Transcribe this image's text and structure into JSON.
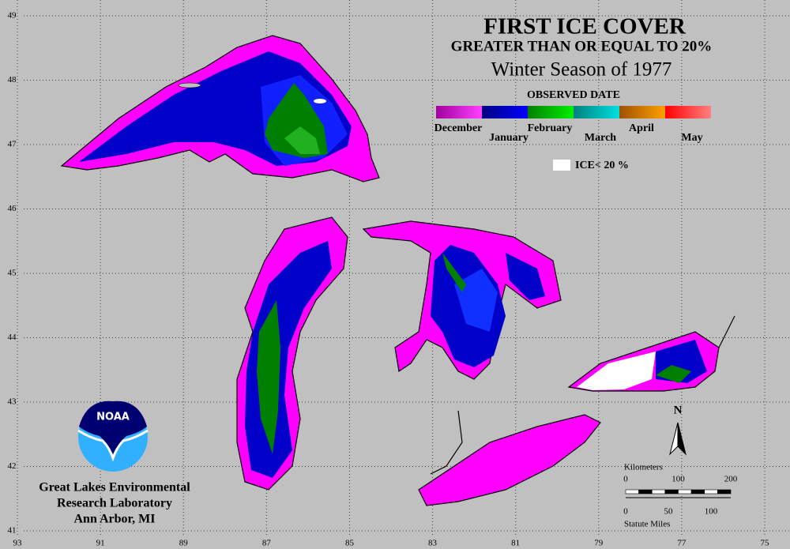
{
  "header": {
    "title": "FIRST ICE COVER",
    "subtitle": "GREATER THAN OR EQUAL TO 20%",
    "season": "Winter Season of 1977"
  },
  "legend": {
    "title": "OBSERVED DATE",
    "months": [
      {
        "label": "December",
        "colors": [
          "#a000a0",
          "#ff40ff"
        ]
      },
      {
        "label": "January",
        "colors": [
          "#000080",
          "#0000ff"
        ]
      },
      {
        "label": "February",
        "colors": [
          "#008000",
          "#00f000"
        ]
      },
      {
        "label": "March",
        "colors": [
          "#008080",
          "#00e0e0"
        ]
      },
      {
        "label": "April",
        "colors": [
          "#a05000",
          "#ffa000"
        ]
      },
      {
        "label": "May",
        "colors": [
          "#ff0000",
          "#ff8080"
        ]
      }
    ],
    "ice_label": "ICE< 20 %"
  },
  "grid": {
    "latitudes": [
      49,
      48,
      47,
      46,
      45,
      44,
      43,
      42,
      41
    ],
    "longitudes": [
      93,
      91,
      89,
      87,
      85,
      83,
      81,
      79,
      77,
      75
    ]
  },
  "scale": {
    "km_label": "Kilometers",
    "km_ticks": [
      0,
      100,
      200
    ],
    "mi_label": "Statute Miles",
    "mi_ticks": [
      0,
      50,
      100
    ]
  },
  "logo": "NOAA",
  "organization": [
    "Great Lakes Environmental",
    "Research Laboratory",
    "Ann Arbor, MI"
  ]
}
